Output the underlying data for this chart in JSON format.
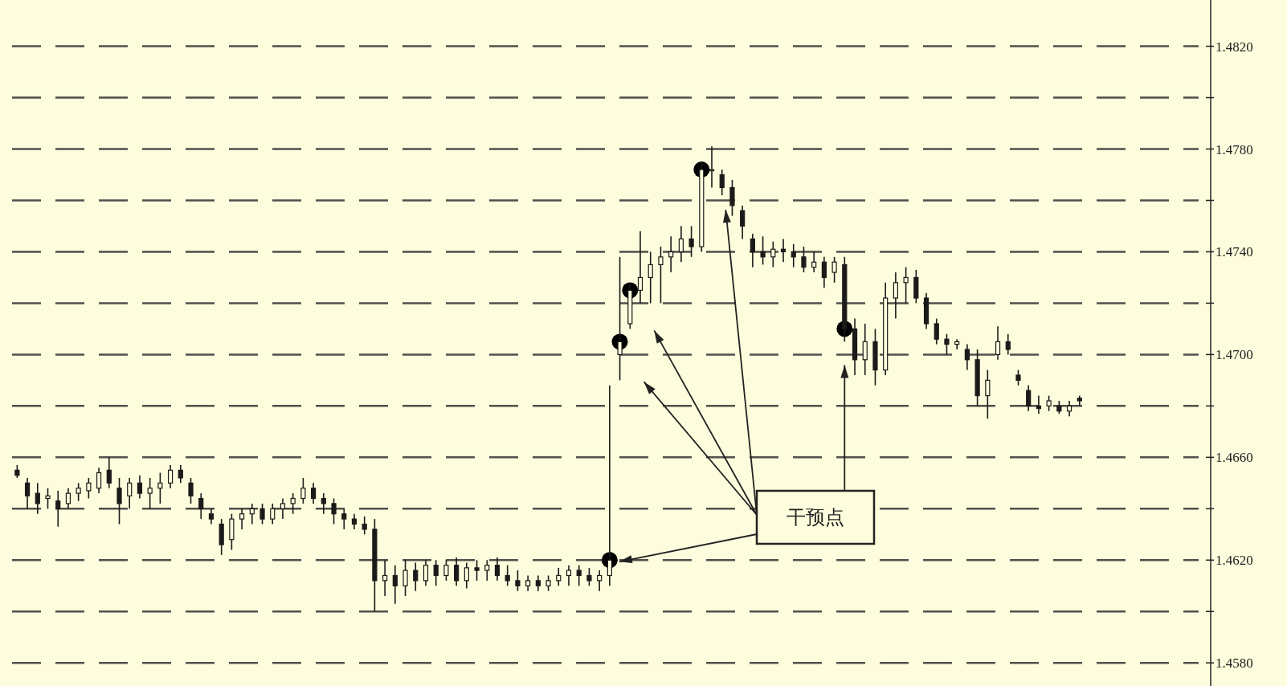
{
  "chart_data": {
    "type": "candlestick",
    "categories": [
      null,
      null,
      null,
      null,
      null,
      null,
      null,
      null,
      null,
      null,
      null,
      null,
      null,
      null,
      null,
      null,
      null,
      null,
      null,
      null,
      null,
      null,
      null,
      null,
      null,
      null,
      null,
      null,
      null,
      null,
      null,
      null,
      null,
      null,
      null,
      null,
      null,
      null,
      null,
      null,
      null,
      null,
      null,
      null,
      null,
      null,
      null,
      null,
      null,
      null,
      null,
      null,
      null,
      null,
      null,
      null,
      null,
      null,
      null,
      null,
      null,
      null,
      null,
      null,
      null,
      null,
      null,
      null,
      null,
      null,
      null,
      null,
      null,
      null,
      null,
      null,
      null,
      null,
      null,
      null,
      null,
      null,
      null,
      null,
      null,
      null,
      null,
      null,
      null,
      null,
      null,
      null,
      null,
      null,
      null,
      null,
      null,
      null,
      null,
      null,
      null,
      null,
      null,
      null,
      null,
      null,
      null,
      null,
      null,
      null,
      null,
      null,
      null,
      null,
      null,
      null
    ],
    "color": "#1a1a1a",
    "ohlc": [
      [
        1.4655,
        1.4657,
        1.4652,
        1.4653
      ],
      [
        1.465,
        1.4652,
        1.464,
        1.4645
      ],
      [
        1.4646,
        1.465,
        1.4638,
        1.4642
      ],
      [
        1.4644,
        1.4648,
        1.464,
        1.4645
      ],
      [
        1.4643,
        1.4647,
        1.4633,
        1.464
      ],
      [
        1.4642,
        1.4648,
        1.464,
        1.4646
      ],
      [
        1.4646,
        1.465,
        1.4643,
        1.4648
      ],
      [
        1.4647,
        1.4652,
        1.4644,
        1.465
      ],
      [
        1.4648,
        1.4656,
        1.4646,
        1.4654
      ],
      [
        1.4655,
        1.466,
        1.4648,
        1.465
      ],
      [
        1.4648,
        1.4652,
        1.4634,
        1.4642
      ],
      [
        1.4645,
        1.4652,
        1.464,
        1.465
      ],
      [
        1.465,
        1.4653,
        1.4644,
        1.4646
      ],
      [
        1.4646,
        1.4652,
        1.464,
        1.4648
      ],
      [
        1.4648,
        1.4654,
        1.4642,
        1.465
      ],
      [
        1.465,
        1.4657,
        1.4648,
        1.4655
      ],
      [
        1.4655,
        1.4657,
        1.465,
        1.4652
      ],
      [
        1.465,
        1.4652,
        1.4642,
        1.4645
      ],
      [
        1.4644,
        1.4646,
        1.4636,
        1.464
      ],
      [
        1.4638,
        1.464,
        1.4634,
        1.4636
      ],
      [
        1.4634,
        1.4636,
        1.4622,
        1.4626
      ],
      [
        1.4628,
        1.4638,
        1.4624,
        1.4636
      ],
      [
        1.4636,
        1.464,
        1.4632,
        1.4638
      ],
      [
        1.4638,
        1.4642,
        1.4634,
        1.464
      ],
      [
        1.464,
        1.4642,
        1.4634,
        1.4636
      ],
      [
        1.4636,
        1.4642,
        1.4634,
        1.464
      ],
      [
        1.464,
        1.4644,
        1.4636,
        1.4642
      ],
      [
        1.4642,
        1.4646,
        1.4638,
        1.4644
      ],
      [
        1.4644,
        1.4652,
        1.4642,
        1.4648
      ],
      [
        1.4648,
        1.465,
        1.4642,
        1.4644
      ],
      [
        1.4644,
        1.4646,
        1.4638,
        1.4642
      ],
      [
        1.4642,
        1.4644,
        1.4634,
        1.4638
      ],
      [
        1.4638,
        1.464,
        1.4632,
        1.4636
      ],
      [
        1.4636,
        1.4638,
        1.4632,
        1.4634
      ],
      [
        1.4634,
        1.4637,
        1.463,
        1.4632
      ],
      [
        1.4632,
        1.4636,
        1.46,
        1.4612
      ],
      [
        1.4612,
        1.462,
        1.4606,
        1.4614
      ],
      [
        1.4614,
        1.4618,
        1.4603,
        1.461
      ],
      [
        1.461,
        1.462,
        1.4606,
        1.4616
      ],
      [
        1.4616,
        1.4619,
        1.4608,
        1.4612
      ],
      [
        1.4612,
        1.462,
        1.461,
        1.4618
      ],
      [
        1.4618,
        1.462,
        1.461,
        1.4614
      ],
      [
        1.4614,
        1.462,
        1.4612,
        1.4618
      ],
      [
        1.4618,
        1.4621,
        1.461,
        1.4612
      ],
      [
        1.4612,
        1.4619,
        1.4609,
        1.4617
      ],
      [
        1.4617,
        1.462,
        1.4612,
        1.4616
      ],
      [
        1.4616,
        1.462,
        1.4612,
        1.4618
      ],
      [
        1.4618,
        1.4621,
        1.4612,
        1.4614
      ],
      [
        1.4614,
        1.4618,
        1.461,
        1.4612
      ],
      [
        1.4612,
        1.4616,
        1.4608,
        1.461
      ],
      [
        1.461,
        1.4614,
        1.4608,
        1.4612
      ],
      [
        1.4612,
        1.4614,
        1.4608,
        1.461
      ],
      [
        1.461,
        1.4614,
        1.4608,
        1.4612
      ],
      [
        1.4612,
        1.4617,
        1.461,
        1.4614
      ],
      [
        1.4614,
        1.4618,
        1.461,
        1.4616
      ],
      [
        1.4616,
        1.4618,
        1.461,
        1.4614
      ],
      [
        1.4614,
        1.4617,
        1.461,
        1.4612
      ],
      [
        1.4612,
        1.4616,
        1.4608,
        1.4614
      ],
      [
        1.4614,
        1.4688,
        1.461,
        1.462
      ],
      [
        1.47,
        1.4738,
        1.469,
        1.4705
      ],
      [
        1.4712,
        1.4728,
        1.471,
        1.4725
      ],
      [
        1.4725,
        1.4748,
        1.472,
        1.473
      ],
      [
        1.473,
        1.474,
        1.472,
        1.4735
      ],
      [
        1.4735,
        1.4742,
        1.472,
        1.4738
      ],
      [
        1.4738,
        1.4746,
        1.4732,
        1.474
      ],
      [
        1.474,
        1.475,
        1.4736,
        1.4745
      ],
      [
        1.4745,
        1.475,
        1.4738,
        1.4742
      ],
      [
        1.4742,
        1.4775,
        1.474,
        1.4772
      ],
      [
        1.4772,
        1.4781,
        1.4765,
        1.4772
      ],
      [
        1.477,
        1.4772,
        1.4762,
        1.4765
      ],
      [
        1.4765,
        1.4768,
        1.4754,
        1.4758
      ],
      [
        1.4756,
        1.4758,
        1.4745,
        1.475
      ],
      [
        1.4745,
        1.4747,
        1.4734,
        1.474
      ],
      [
        1.474,
        1.4746,
        1.4735,
        1.4738
      ],
      [
        1.4738,
        1.4744,
        1.4734,
        1.4741
      ],
      [
        1.4741,
        1.4745,
        1.4736,
        1.474
      ],
      [
        1.474,
        1.4743,
        1.4734,
        1.4738
      ],
      [
        1.4738,
        1.4742,
        1.4732,
        1.4734
      ],
      [
        1.4734,
        1.474,
        1.4732,
        1.4736
      ],
      [
        1.4736,
        1.4738,
        1.4726,
        1.473
      ],
      [
        1.4732,
        1.4738,
        1.4728,
        1.4736
      ],
      [
        1.4735,
        1.4738,
        1.4705,
        1.471
      ],
      [
        1.471,
        1.4714,
        1.4692,
        1.4698
      ],
      [
        1.4698,
        1.4712,
        1.4692,
        1.4705
      ],
      [
        1.4705,
        1.471,
        1.4688,
        1.4694
      ],
      [
        1.4694,
        1.4728,
        1.4692,
        1.4722
      ],
      [
        1.4722,
        1.4732,
        1.4714,
        1.4728
      ],
      [
        1.4728,
        1.4734,
        1.472,
        1.473
      ],
      [
        1.473,
        1.4733,
        1.472,
        1.4722
      ],
      [
        1.4722,
        1.4724,
        1.471,
        1.4712
      ],
      [
        1.4712,
        1.4714,
        1.4704,
        1.4706
      ],
      [
        1.4706,
        1.4708,
        1.47,
        1.4704
      ],
      [
        1.4704,
        1.4706,
        1.4702,
        1.4705
      ],
      [
        1.4702,
        1.4704,
        1.4694,
        1.4698
      ],
      [
        1.4698,
        1.4702,
        1.468,
        1.4684
      ],
      [
        1.4684,
        1.4694,
        1.4675,
        1.469
      ],
      [
        1.47,
        1.4711,
        1.4698,
        1.4705
      ],
      [
        1.4705,
        1.4708,
        1.47,
        1.4702
      ],
      [
        1.4692,
        1.4694,
        1.4688,
        1.469
      ],
      [
        1.4686,
        1.4688,
        1.4678,
        1.468
      ],
      [
        1.468,
        1.4684,
        1.4677,
        1.4679
      ],
      [
        1.468,
        1.4684,
        1.4678,
        1.4682
      ],
      [
        1.468,
        1.4682,
        1.4677,
        1.4678
      ],
      [
        1.4678,
        1.4682,
        1.4676,
        1.468
      ],
      [
        1.4683,
        1.4684,
        1.468,
        1.4682
      ],
      null,
      null,
      null,
      null,
      null,
      null,
      null,
      null,
      null,
      null,
      null
    ],
    "series": [
      {
        "type": "scatter",
        "color": "#000000",
        "values": [
          null,
          null,
          null,
          null,
          null,
          null,
          null,
          null,
          null,
          null,
          null,
          null,
          null,
          null,
          null,
          null,
          null,
          null,
          null,
          null,
          null,
          null,
          null,
          null,
          null,
          null,
          null,
          null,
          null,
          null,
          null,
          null,
          null,
          null,
          null,
          null,
          null,
          null,
          null,
          null,
          null,
          null,
          null,
          null,
          null,
          null,
          null,
          null,
          null,
          null,
          null,
          null,
          null,
          null,
          null,
          null,
          null,
          null,
          1.462,
          1.4705,
          1.4725,
          null,
          null,
          null,
          null,
          null,
          null,
          1.4772,
          null,
          null,
          null,
          null,
          null,
          null,
          null,
          null,
          null,
          null,
          null,
          null,
          null,
          1.471,
          null,
          null,
          null,
          null,
          null,
          null,
          null,
          null,
          null,
          null,
          null,
          null,
          null,
          null,
          null,
          null,
          null,
          null,
          null,
          null,
          null,
          null,
          null,
          null,
          null,
          null,
          null,
          null,
          null,
          null,
          null,
          null,
          null,
          null
        ]
      }
    ],
    "marker": "circle",
    "ylim": [
      1.4571,
      1.4838
    ],
    "yticks": [
      {
        "value": 1.458,
        "label": "1.4580"
      },
      {
        "value": 1.46,
        "label": null
      },
      {
        "value": 1.462,
        "label": "1.4620"
      },
      {
        "value": 1.464,
        "label": null
      },
      {
        "value": 1.466,
        "label": "1.4660"
      },
      {
        "value": 1.468,
        "label": null
      },
      {
        "value": 1.47,
        "label": "1.4700"
      },
      {
        "value": 1.472,
        "label": null
      },
      {
        "value": 1.474,
        "label": "1.4740"
      },
      {
        "value": 1.476,
        "label": null
      },
      {
        "value": 1.478,
        "label": "1.4780"
      },
      {
        "value": 1.48,
        "label": null
      },
      {
        "value": 1.482,
        "label": "1.4820"
      }
    ],
    "grid": "y",
    "tick_labels": "y",
    "annotations": [
      "干预点"
    ]
  }
}
